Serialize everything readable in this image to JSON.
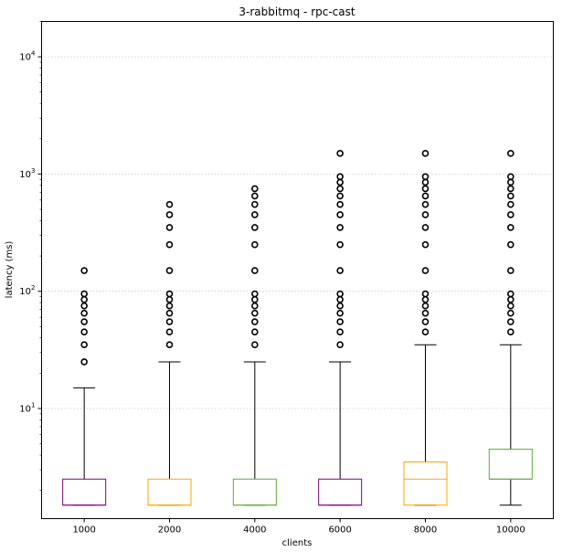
{
  "chart_data": {
    "type": "box",
    "title": "3-rabbitmq - rpc-cast",
    "xlabel": "clients",
    "ylabel": "latency (ms)",
    "yscale": "log",
    "ylim": [
      1.15,
      20000
    ],
    "y_major_ticks": [
      {
        "value": 10,
        "base": "10",
        "exp": "1"
      },
      {
        "value": 100,
        "base": "10",
        "exp": "2"
      },
      {
        "value": 1000,
        "base": "10",
        "exp": "3"
      },
      {
        "value": 10000,
        "base": "10",
        "exp": "4"
      }
    ],
    "grid": "horizontal dotted",
    "categories": [
      "1000",
      "2000",
      "4000",
      "6000",
      "8000",
      "10000"
    ],
    "boxes": [
      {
        "label": "1000",
        "color": "#800080",
        "whisker_low": 1.5,
        "q1": 1.5,
        "median": 1.5,
        "q3": 2.5,
        "whisker_high": 15,
        "outliers": [
          25,
          35,
          45,
          55,
          65,
          75,
          85,
          95,
          150
        ]
      },
      {
        "label": "2000",
        "color": "#ffa500",
        "whisker_low": 1.5,
        "q1": 1.5,
        "median": 1.5,
        "q3": 2.5,
        "whisker_high": 25,
        "outliers": [
          35,
          45,
          55,
          65,
          75,
          85,
          95,
          150,
          250,
          350,
          450,
          550
        ]
      },
      {
        "label": "4000",
        "color": "#66aa33",
        "whisker_low": 1.5,
        "q1": 1.5,
        "median": 1.5,
        "q3": 2.5,
        "whisker_high": 25,
        "outliers": [
          35,
          45,
          55,
          65,
          75,
          85,
          95,
          150,
          250,
          350,
          450,
          550,
          650,
          750
        ]
      },
      {
        "label": "6000",
        "color": "#800080",
        "whisker_low": 1.5,
        "q1": 1.5,
        "median": 1.5,
        "q3": 2.5,
        "whisker_high": 25,
        "outliers": [
          35,
          45,
          55,
          65,
          75,
          85,
          95,
          150,
          250,
          350,
          450,
          550,
          650,
          750,
          850,
          950,
          1500
        ]
      },
      {
        "label": "8000",
        "color": "#ffa500",
        "whisker_low": 1.5,
        "q1": 1.5,
        "median": 2.5,
        "q3": 3.5,
        "whisker_high": 35,
        "outliers": [
          45,
          55,
          65,
          75,
          85,
          95,
          150,
          250,
          350,
          450,
          550,
          650,
          750,
          850,
          950,
          1500
        ]
      },
      {
        "label": "10000",
        "color": "#66aa33",
        "whisker_low": 1.5,
        "q1": 2.5,
        "median": 2.5,
        "q3": 4.5,
        "whisker_high": 35,
        "outliers": [
          45,
          55,
          65,
          75,
          85,
          95,
          150,
          250,
          350,
          450,
          550,
          650,
          750,
          850,
          950,
          1500
        ]
      }
    ]
  }
}
